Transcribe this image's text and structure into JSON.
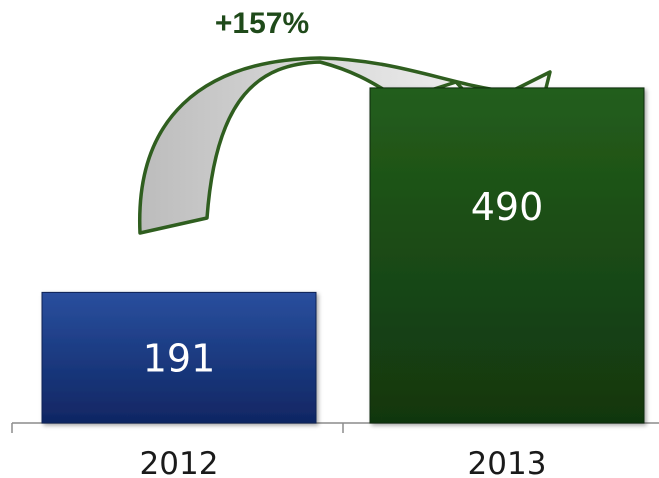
{
  "chart_data": {
    "type": "bar",
    "categories": [
      "2012",
      "2013"
    ],
    "values": [
      191,
      490
    ],
    "title": "",
    "xlabel": "",
    "ylabel": "",
    "ylim": [
      0,
      600
    ],
    "grid": false,
    "data_labels": [
      "191",
      "490"
    ],
    "annotation": "+157%",
    "colors": {
      "2012": "#1b3a80",
      "2013": "#1a4a14",
      "arrow_stroke": "#2f5e1f",
      "arrow_fill": "#cdcdcd"
    }
  }
}
